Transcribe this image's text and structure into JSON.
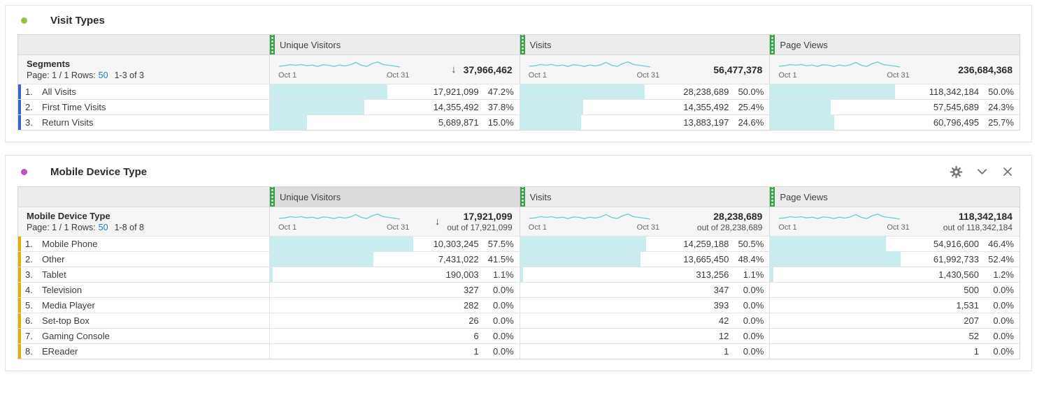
{
  "colors": {
    "sparkline": "#74ccd4",
    "bar_fill": "#c9ecef",
    "handle_green": "#3ba04a",
    "link_blue": "#2574c6",
    "visit_types_accent": "#8dc63f",
    "mobile_device_accent": "#c44fc4",
    "visit_types_row_marker": "#3b66c4",
    "mobile_device_row_marker": "#e0b000"
  },
  "panels": [
    {
      "title": "Visit Types",
      "accent": "#8dc63f",
      "marker": "#3b66c4",
      "header_icons": [],
      "table": {
        "first_col_title": "Segments",
        "pagination": {
          "prefix": "Page: 1 / 1 Rows:",
          "rows_link": "50",
          "range": "1-3 of 3"
        },
        "columns": [
          {
            "label": "Unique Visitors",
            "date_start": "Oct 1",
            "date_end": "Oct 31",
            "total": "37,966,462",
            "out_of": "",
            "sorted": true,
            "selected": false
          },
          {
            "label": "Visits",
            "date_start": "Oct 1",
            "date_end": "Oct 31",
            "total": "56,477,378",
            "out_of": "",
            "sorted": false,
            "selected": false
          },
          {
            "label": "Page Views",
            "date_start": "Oct 1",
            "date_end": "Oct 31",
            "total": "236,684,368",
            "out_of": "",
            "sorted": false,
            "selected": false
          }
        ],
        "rows": [
          {
            "num": "1.",
            "name": "All Visits",
            "cells": [
              {
                "value": "17,921,099",
                "pct": "47.2%",
                "bar": 47.2
              },
              {
                "value": "28,238,689",
                "pct": "50.0%",
                "bar": 50.0
              },
              {
                "value": "118,342,184",
                "pct": "50.0%",
                "bar": 50.0
              }
            ]
          },
          {
            "num": "2.",
            "name": "First Time Visits",
            "cells": [
              {
                "value": "14,355,492",
                "pct": "37.8%",
                "bar": 37.8
              },
              {
                "value": "14,355,492",
                "pct": "25.4%",
                "bar": 25.4
              },
              {
                "value": "57,545,689",
                "pct": "24.3%",
                "bar": 24.3
              }
            ]
          },
          {
            "num": "3.",
            "name": "Return Visits",
            "cells": [
              {
                "value": "5,689,871",
                "pct": "15.0%",
                "bar": 15.0
              },
              {
                "value": "13,883,197",
                "pct": "24.6%",
                "bar": 24.6
              },
              {
                "value": "60,796,495",
                "pct": "25.7%",
                "bar": 25.7
              }
            ]
          }
        ]
      }
    },
    {
      "title": "Mobile Device Type",
      "accent": "#c44fc4",
      "marker": "#e0b000",
      "header_icons": [
        "gear-icon",
        "chevron-down-icon",
        "close-icon"
      ],
      "table": {
        "first_col_title": "Mobile Device Type",
        "pagination": {
          "prefix": "Page: 1 / 1 Rows:",
          "rows_link": "50",
          "range": "1-8 of 8"
        },
        "columns": [
          {
            "label": "Unique Visitors",
            "date_start": "Oct 1",
            "date_end": "Oct 31",
            "total": "17,921,099",
            "out_of": "out of 17,921,099",
            "sorted": true,
            "selected": true
          },
          {
            "label": "Visits",
            "date_start": "Oct 1",
            "date_end": "Oct 31",
            "total": "28,238,689",
            "out_of": "out of 28,238,689",
            "sorted": false,
            "selected": false
          },
          {
            "label": "Page Views",
            "date_start": "Oct 1",
            "date_end": "Oct 31",
            "total": "118,342,184",
            "out_of": "out of 118,342,184",
            "sorted": false,
            "selected": false
          }
        ],
        "rows": [
          {
            "num": "1.",
            "name": "Mobile Phone",
            "cells": [
              {
                "value": "10,303,245",
                "pct": "57.5%",
                "bar": 57.5
              },
              {
                "value": "14,259,188",
                "pct": "50.5%",
                "bar": 50.5
              },
              {
                "value": "54,916,600",
                "pct": "46.4%",
                "bar": 46.4
              }
            ]
          },
          {
            "num": "2.",
            "name": "Other",
            "cells": [
              {
                "value": "7,431,022",
                "pct": "41.5%",
                "bar": 41.5
              },
              {
                "value": "13,665,450",
                "pct": "48.4%",
                "bar": 48.4
              },
              {
                "value": "61,992,733",
                "pct": "52.4%",
                "bar": 52.4
              }
            ]
          },
          {
            "num": "3.",
            "name": "Tablet",
            "cells": [
              {
                "value": "190,003",
                "pct": "1.1%",
                "bar": 1.1
              },
              {
                "value": "313,256",
                "pct": "1.1%",
                "bar": 1.1
              },
              {
                "value": "1,430,560",
                "pct": "1.2%",
                "bar": 1.2
              }
            ]
          },
          {
            "num": "4.",
            "name": "Television",
            "cells": [
              {
                "value": "327",
                "pct": "0.0%",
                "bar": 0
              },
              {
                "value": "347",
                "pct": "0.0%",
                "bar": 0
              },
              {
                "value": "500",
                "pct": "0.0%",
                "bar": 0
              }
            ]
          },
          {
            "num": "5.",
            "name": "Media Player",
            "cells": [
              {
                "value": "282",
                "pct": "0.0%",
                "bar": 0
              },
              {
                "value": "393",
                "pct": "0.0%",
                "bar": 0
              },
              {
                "value": "1,531",
                "pct": "0.0%",
                "bar": 0
              }
            ]
          },
          {
            "num": "6.",
            "name": "Set-top Box",
            "cells": [
              {
                "value": "26",
                "pct": "0.0%",
                "bar": 0
              },
              {
                "value": "42",
                "pct": "0.0%",
                "bar": 0
              },
              {
                "value": "207",
                "pct": "0.0%",
                "bar": 0
              }
            ]
          },
          {
            "num": "7.",
            "name": "Gaming Console",
            "cells": [
              {
                "value": "6",
                "pct": "0.0%",
                "bar": 0
              },
              {
                "value": "12",
                "pct": "0.0%",
                "bar": 0
              },
              {
                "value": "52",
                "pct": "0.0%",
                "bar": 0
              }
            ]
          },
          {
            "num": "8.",
            "name": "EReader",
            "cells": [
              {
                "value": "1",
                "pct": "0.0%",
                "bar": 0
              },
              {
                "value": "1",
                "pct": "0.0%",
                "bar": 0
              },
              {
                "value": "1",
                "pct": "0.0%",
                "bar": 0
              }
            ]
          }
        ]
      }
    }
  ]
}
